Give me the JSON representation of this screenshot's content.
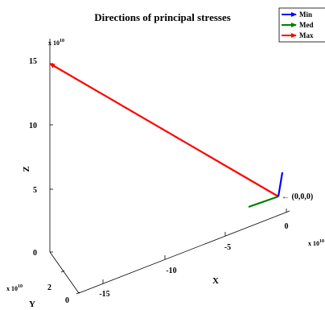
{
  "chart_data": {
    "type": "3d-quiver",
    "title": "Directions of principal stresses",
    "xlabel": "X",
    "ylabel": "Y",
    "zlabel": "Z",
    "x_ticks": [
      "-15",
      "-10",
      "-5",
      "0"
    ],
    "y_ticks": [
      "0",
      "2"
    ],
    "z_ticks": [
      "0",
      "5",
      "10",
      "15"
    ],
    "x_exponent": "x 10",
    "y_exponent": "x 10",
    "z_exponent": "x 10",
    "exponent_power": "10",
    "origin_annotation": "← (0,0,0)",
    "legend": {
      "placement": "top-right",
      "entries": [
        {
          "name": "Min",
          "color": "#0000ff"
        },
        {
          "name": "Med",
          "color": "#008000"
        },
        {
          "name": "Max",
          "color": "#ff0000"
        }
      ]
    }
  }
}
